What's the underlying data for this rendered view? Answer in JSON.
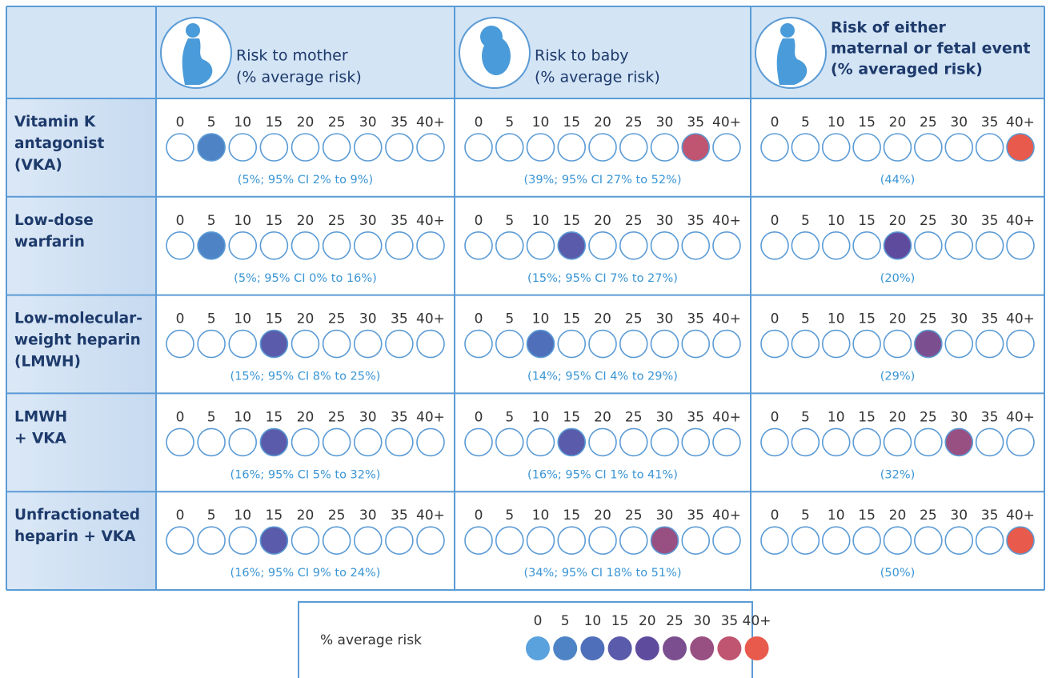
{
  "header": {
    "columns": [
      {
        "lines": [
          "Risk to mother",
          "(% average risk)"
        ],
        "bold": false
      },
      {
        "lines": [
          "Risk to baby",
          "(% average risk)"
        ],
        "bold": false
      },
      {
        "lines": [
          "Risk of either",
          "maternal or fetal event",
          "(% averaged risk)"
        ],
        "bold": true
      }
    ]
  },
  "scale": [
    "0",
    "5",
    "10",
    "15",
    "20",
    "25",
    "30",
    "35",
    "40+"
  ],
  "rows": [
    {
      "label": [
        "Vitamin K",
        "antagonist",
        "(VKA)"
      ],
      "cells": [
        {
          "level": 1,
          "note": "(5%; 95% CI 2% to 9%)"
        },
        {
          "level": 7,
          "note": "(39%; 95% CI 27% to 52%)"
        },
        {
          "level": 8,
          "note": "(44%)"
        }
      ]
    },
    {
      "label": [
        "Low-dose",
        "warfarin"
      ],
      "cells": [
        {
          "level": 1,
          "note": "(5%; 95% CI 0% to 16%)"
        },
        {
          "level": 3,
          "note": "(15%; 95% CI 7% to 27%)"
        },
        {
          "level": 4,
          "note": "(20%)"
        }
      ]
    },
    {
      "label": [
        "Low-molecular-",
        "weight heparin",
        "(LMWH)"
      ],
      "cells": [
        {
          "level": 3,
          "note": "(15%; 95% CI 8% to 25%)"
        },
        {
          "level": 2,
          "note": "(14%; 95% CI 4% to 29%)"
        },
        {
          "level": 5,
          "note": "(29%)"
        }
      ]
    },
    {
      "label": [
        "LMWH",
        "+ VKA"
      ],
      "cells": [
        {
          "level": 3,
          "note": "(16%; 95% CI 5% to 32%)"
        },
        {
          "level": 3,
          "note": "(16%; 95% CI 1% to 41%)"
        },
        {
          "level": 6,
          "note": "(32%)"
        }
      ]
    },
    {
      "label": [
        "Unfractionated",
        "heparin + VKA"
      ],
      "cells": [
        {
          "level": 3,
          "note": "(16%; 95% CI 9% to 24%)"
        },
        {
          "level": 6,
          "note": "(34%; 95% CI 18% to 51%)"
        },
        {
          "level": 8,
          "note": "(50%)"
        }
      ]
    }
  ],
  "legend": {
    "label": "% average risk",
    "colors": [
      "#5aa2de",
      "#4e84c6",
      "#4f6fba",
      "#5a5bab",
      "#5f4b9e",
      "#7b4f8f",
      "#985082",
      "#bf5570",
      "#e85b4c"
    ]
  }
}
